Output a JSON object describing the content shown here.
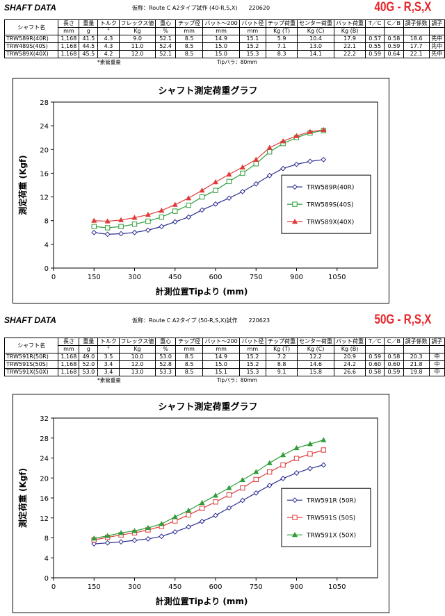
{
  "sections": [
    {
      "title": "SHAFT DATA",
      "kasho": "仮称：Route C A2タイプ試作 (40-R,S,X)　　220620",
      "flex_tag": "40G - R,S,X",
      "table": {
        "headers": [
          "シャフト名",
          "長さ",
          "重量",
          "トルク",
          "フレックス値",
          "重心",
          "チップ径",
          "バット〜200",
          "バット径",
          "チップ荷重",
          "センター荷重",
          "バット荷重",
          "T／C",
          "C／B",
          "調子係数",
          "調子"
        ],
        "units": [
          "",
          "mm",
          "g",
          "°",
          "Kg",
          "%",
          "mm",
          "mm",
          "mm",
          "Kg (T)",
          "Kg (C)",
          "Kg (B)",
          "",
          "",
          "",
          ""
        ],
        "rows": [
          [
            "TRW589R(40R)",
            "1,168",
            "41.5",
            "4.3",
            "9.0",
            "52.1",
            "8.5",
            "14.9",
            "15.1",
            "5.9",
            "10.4",
            "17.9",
            "0.57",
            "0.58",
            "18.6",
            "先中"
          ],
          [
            "TRW489S(40S)",
            "1,168",
            "44.5",
            "4.3",
            "11.0",
            "52.4",
            "8.5",
            "15.0",
            "15.2",
            "7.1",
            "13.0",
            "22.1",
            "0.55",
            "0.59",
            "17.7",
            "先中"
          ],
          [
            "TRW589X(40X)",
            "1,168",
            "45.5",
            "4.2",
            "12.0",
            "52.1",
            "8.5",
            "15.0",
            "15.3",
            "8.3",
            "14.1",
            "22.2",
            "0.59",
            "0.64",
            "22.1",
            "先中"
          ]
        ]
      },
      "foot_left": "*素管重量",
      "foot_right": "Tipバラ：80mm",
      "chart_data": {
        "type": "line",
        "title": "シャフト測定荷重グラフ",
        "xlabel": "計測位置Tipより (mm)",
        "ylabel": "測定荷重 (Kgf)",
        "x_ticks": [
          0,
          150,
          300,
          450,
          600,
          750,
          900,
          1050
        ],
        "y_ticks": [
          0,
          4,
          8,
          12,
          16,
          20,
          24,
          28
        ],
        "xlim": [
          0,
          1200
        ],
        "ylim": [
          0,
          28
        ],
        "legend_position": "right",
        "x": [
          150,
          200,
          250,
          300,
          350,
          400,
          450,
          500,
          550,
          600,
          650,
          700,
          750,
          800,
          850,
          900,
          950,
          1000
        ],
        "series": [
          {
            "name": "TRW589R(40R)",
            "color": "#2b2f8f",
            "marker": "diamond",
            "values": [
              6.0,
              5.7,
              5.8,
              6.0,
              6.4,
              7.0,
              7.8,
              8.6,
              9.8,
              10.8,
              11.8,
              12.9,
              14.2,
              15.6,
              16.8,
              17.5,
              18.0,
              18.3
            ]
          },
          {
            "name": "TRW589S(40S)",
            "color": "#2e9d3a",
            "marker": "square",
            "values": [
              7.0,
              6.8,
              7.0,
              7.4,
              7.9,
              8.6,
              9.6,
              10.6,
              12.0,
              13.1,
              14.6,
              16.0,
              17.6,
              19.6,
              21.0,
              22.0,
              22.8,
              23.2
            ]
          },
          {
            "name": "TRW589X(40X)",
            "color": "#e03b3b",
            "marker": "triangle",
            "values": [
              8.0,
              7.9,
              8.1,
              8.5,
              9.0,
              9.7,
              10.7,
              11.8,
              13.1,
              14.5,
              15.8,
              17.0,
              18.3,
              20.3,
              21.4,
              22.3,
              23.0,
              23.3
            ]
          }
        ]
      }
    },
    {
      "title": "SHAFT DATA",
      "kasho": "仮称：Route C A2タイプ (50-R,S,X)試作　　220623",
      "flex_tag": "50G - R,S,X",
      "table": {
        "headers": [
          "シャフト名",
          "長さ",
          "重量",
          "トルク",
          "フレックス値",
          "重心",
          "チップ径",
          "バット〜200",
          "バット径",
          "チップ荷重",
          "センター荷重",
          "バット荷重",
          "T／C",
          "C／B",
          "調子係数",
          "調子"
        ],
        "units": [
          "",
          "mm",
          "g",
          "°",
          "Kg",
          "%",
          "mm",
          "mm",
          "mm",
          "Kg (T)",
          "Kg (C)",
          "Kg (B)",
          "",
          "",
          "",
          ""
        ],
        "rows": [
          [
            "TRW591R(50R)",
            "1,168",
            "49.0",
            "3.5",
            "10.0",
            "53.0",
            "8.5",
            "14.9",
            "15.2",
            "7.2",
            "12.2",
            "20.9",
            "0.59",
            "0.58",
            "20.3",
            "中"
          ],
          [
            "TRW591S(50S)",
            "1,168",
            "52.0",
            "3.4",
            "12.0",
            "52.8",
            "8.5",
            "15.0",
            "15.2",
            "8.8",
            "14.6",
            "24.2",
            "0.60",
            "0.60",
            "21.8",
            "中"
          ],
          [
            "TRW591X(50X)",
            "1,168",
            "53.0",
            "3.4",
            "13.0",
            "53.3",
            "8.5",
            "15.1",
            "15.3",
            "9.1",
            "15.8",
            "26.6",
            "0.58",
            "0.59",
            "19.8",
            "中"
          ]
        ]
      },
      "foot_left": "*素管重量",
      "foot_right": "Tipバラ：80mm",
      "chart_data": {
        "type": "line",
        "title": "シャフト測定荷重グラフ",
        "xlabel": "計測位置Tipより (mm)",
        "ylabel": "測定荷重 (Kgf)",
        "x_ticks": [
          0,
          150,
          300,
          450,
          600,
          750,
          900,
          1050
        ],
        "y_ticks": [
          0,
          4,
          8,
          12,
          16,
          20,
          24,
          28,
          32
        ],
        "xlim": [
          0,
          1200
        ],
        "ylim": [
          0,
          32
        ],
        "legend_position": "right",
        "x": [
          150,
          200,
          250,
          300,
          350,
          400,
          450,
          500,
          550,
          600,
          650,
          700,
          750,
          800,
          850,
          900,
          950,
          1000
        ],
        "series": [
          {
            "name": "TRW591R (50R)",
            "color": "#2b2f8f",
            "marker": "diamond",
            "values": [
              6.8,
              7.0,
              7.2,
              7.5,
              7.8,
              8.3,
              9.2,
              10.2,
              11.3,
              12.5,
              14.0,
              15.5,
              17.0,
              18.5,
              19.9,
              21.0,
              21.9,
              22.6
            ]
          },
          {
            "name": "TRW591S (50S)",
            "color": "#e03b3b",
            "marker": "square",
            "values": [
              7.6,
              8.1,
              8.6,
              9.0,
              9.6,
              10.3,
              11.4,
              12.6,
              13.9,
              15.2,
              16.6,
              18.0,
              19.7,
              21.2,
              22.6,
              23.9,
              24.8,
              25.6
            ]
          },
          {
            "name": "TRW591X (50X)",
            "color": "#2e9d3a",
            "marker": "triangle",
            "values": [
              7.9,
              8.4,
              9.0,
              9.4,
              10.0,
              10.8,
              12.2,
              13.5,
              15.0,
              16.5,
              18.0,
              19.6,
              21.2,
              23.0,
              24.6,
              26.0,
              26.8,
              27.6
            ]
          }
        ]
      }
    }
  ]
}
